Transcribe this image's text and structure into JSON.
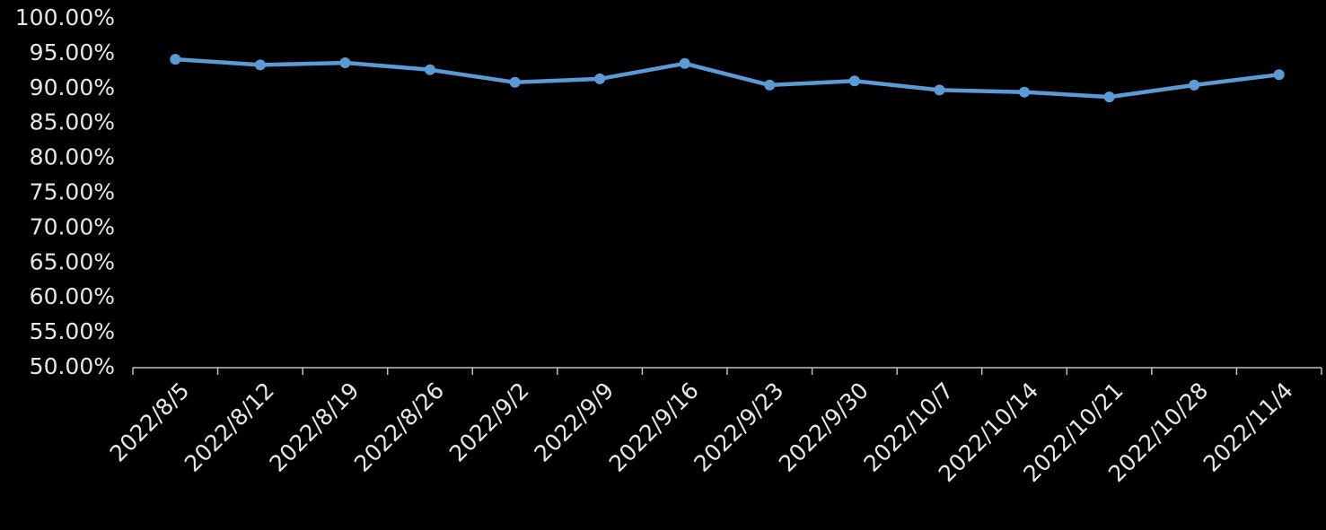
{
  "chart_data": {
    "type": "line",
    "categories": [
      "2022/8/5",
      "2022/8/12",
      "2022/8/19",
      "2022/8/26",
      "2022/9/2",
      "2022/9/9",
      "2022/9/16",
      "2022/9/23",
      "2022/9/30",
      "2022/10/7",
      "2022/10/14",
      "2022/10/21",
      "2022/10/28",
      "2022/11/4"
    ],
    "series": [
      {
        "color": "#5b9bd5",
        "values": [
          94.2,
          93.4,
          93.7,
          92.7,
          90.9,
          91.4,
          93.6,
          90.5,
          91.1,
          89.8,
          89.5,
          88.8,
          90.5,
          92.0
        ]
      }
    ],
    "ylim": [
      50,
      100
    ],
    "yticks": [
      {
        "value": 50,
        "label": "50.00%"
      },
      {
        "value": 55,
        "label": "55.00%"
      },
      {
        "value": 60,
        "label": "60.00%"
      },
      {
        "value": 65,
        "label": "65.00%"
      },
      {
        "value": 70,
        "label": "70.00%"
      },
      {
        "value": 75,
        "label": "75.00%"
      },
      {
        "value": 80,
        "label": "80.00%"
      },
      {
        "value": 85,
        "label": "85.00%"
      },
      {
        "value": 90,
        "label": "90.00%"
      },
      {
        "value": 95,
        "label": "95.00%"
      },
      {
        "value": 100,
        "label": "100.00%"
      }
    ],
    "grid": false
  }
}
